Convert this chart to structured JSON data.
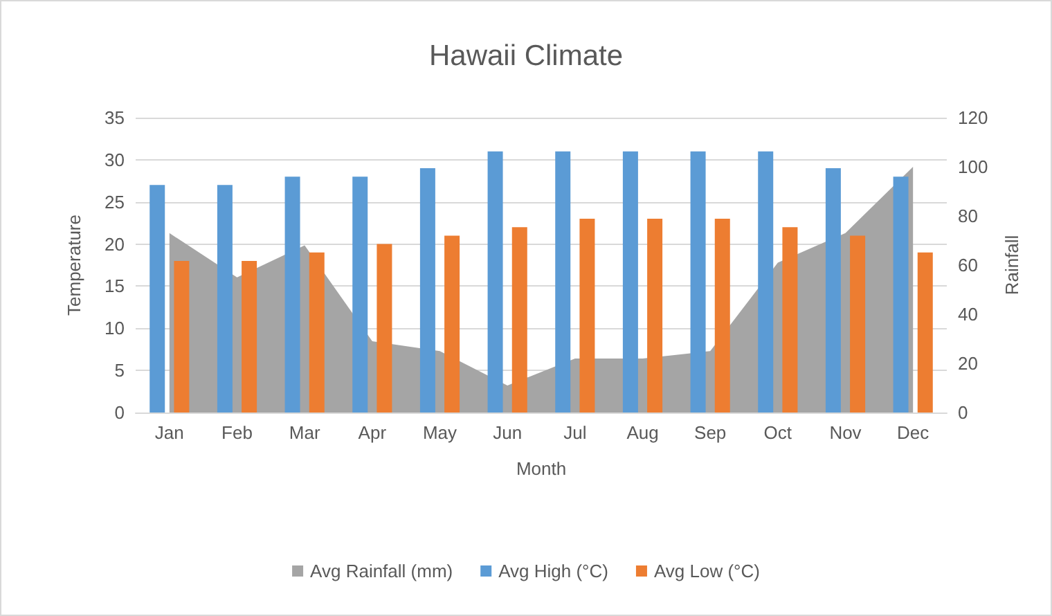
{
  "chart_data": {
    "type": "bar",
    "title": "Hawaii Climate",
    "xlabel": "Month",
    "ylabel": "Temperature",
    "y2label": "Rainfall",
    "categories": [
      "Jan",
      "Feb",
      "Mar",
      "Apr",
      "May",
      "Jun",
      "Jul",
      "Aug",
      "Sep",
      "Oct",
      "Nov",
      "Dec"
    ],
    "series": [
      {
        "name": "Avg Rainfall (mm)",
        "type": "area",
        "axis": "y2",
        "color": "#a5a5a5",
        "values": [
          73,
          55,
          68,
          29,
          25,
          11,
          22,
          22,
          25,
          61,
          73,
          100
        ]
      },
      {
        "name": "Avg High (°C)",
        "color": "#5b9bd5",
        "values": [
          27,
          27,
          28,
          28,
          29,
          31,
          31,
          31,
          31,
          31,
          29,
          28
        ]
      },
      {
        "name": "Avg Low (°C)",
        "color": "#ed7d31",
        "values": [
          18,
          18,
          19,
          20,
          21,
          22,
          23,
          23,
          23,
          22,
          21,
          19
        ]
      }
    ],
    "ylim": [
      0,
      35
    ],
    "yticks": [
      0,
      5,
      10,
      15,
      20,
      25,
      30,
      35
    ],
    "y2lim": [
      0,
      120
    ],
    "y2ticks": [
      0,
      20,
      40,
      60,
      80,
      100,
      120
    ],
    "grid": "y",
    "legend": "bottom"
  }
}
